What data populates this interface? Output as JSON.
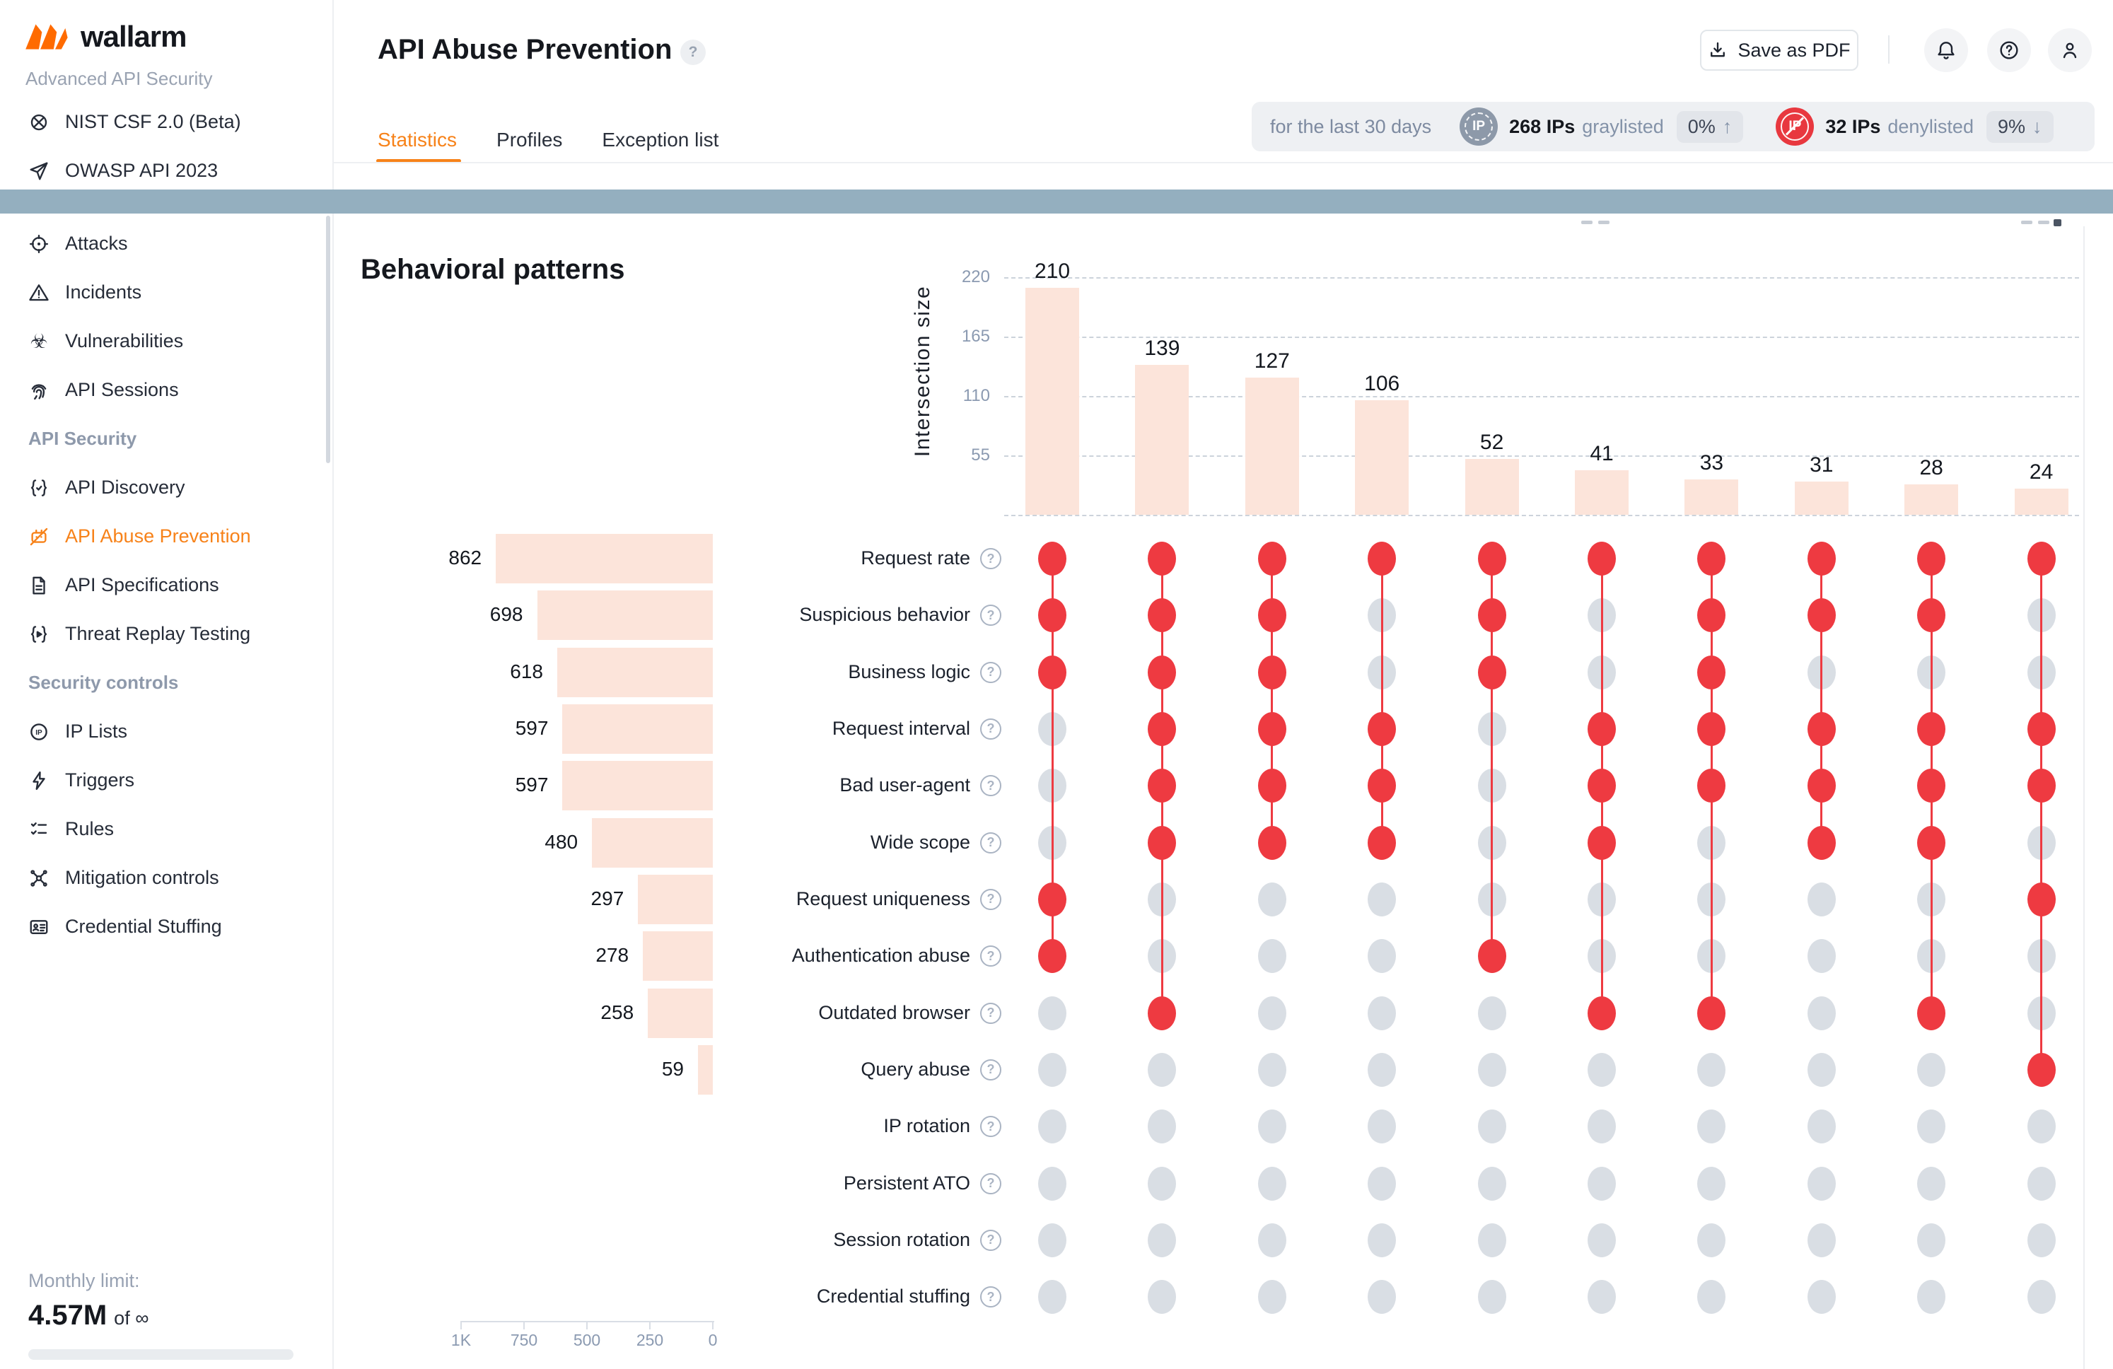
{
  "colors": {
    "accent_orange": "#f78219",
    "red": "#ee3a41",
    "pink_bar": "#fce4da",
    "dot_gray": "#d9dee4",
    "band_blue": "#94afbf"
  },
  "sidebar": {
    "logo": "wallarm",
    "logo_icon": "wallarm-logo-icon",
    "tagline": "Advanced API Security",
    "top_items": [
      {
        "label": "NIST CSF 2.0 (Beta)",
        "icon": "nist-icon"
      },
      {
        "label": "OWASP API 2023",
        "icon": "paper-plane-icon"
      }
    ],
    "items": [
      {
        "type": "item",
        "label": "Attacks",
        "icon": "target-icon"
      },
      {
        "type": "item",
        "label": "Incidents",
        "icon": "warning-icon"
      },
      {
        "type": "item",
        "label": "Vulnerabilities",
        "icon": "biohazard-icon"
      },
      {
        "type": "item",
        "label": "API Sessions",
        "icon": "fingerprint-icon"
      },
      {
        "type": "section",
        "label": "API Security"
      },
      {
        "type": "item",
        "label": "API Discovery",
        "icon": "braces-check-icon"
      },
      {
        "type": "item",
        "label": "API Abuse Prevention",
        "icon": "robot-crossed-icon",
        "active": true
      },
      {
        "type": "item",
        "label": "API Specifications",
        "icon": "document-icon"
      },
      {
        "type": "item",
        "label": "Threat Replay Testing",
        "icon": "braces-play-icon"
      },
      {
        "type": "section",
        "label": "Security controls",
        "chevron": "chevron-down-icon"
      },
      {
        "type": "item",
        "label": "IP Lists",
        "icon": "ip-circle-icon"
      },
      {
        "type": "item",
        "label": "Triggers",
        "icon": "lightning-icon"
      },
      {
        "type": "item",
        "label": "Rules",
        "icon": "checklist-icon"
      },
      {
        "type": "item",
        "label": "Mitigation controls",
        "icon": "hub-icon"
      },
      {
        "type": "item",
        "label": "Credential Stuffing",
        "icon": "id-card-icon"
      }
    ],
    "monthly_limit_label": "Monthly limit:",
    "monthly_limit_value": "4.57M",
    "monthly_limit_suffix": "of ∞"
  },
  "header": {
    "title": "API Abuse Prevention",
    "title_help_icon": "help-icon",
    "tabs": [
      {
        "label": "Statistics",
        "active": true
      },
      {
        "label": "Profiles",
        "active": false
      },
      {
        "label": "Exception list",
        "active": false
      }
    ],
    "save_pdf_label": "Save as PDF",
    "save_pdf_icon": "download-icon",
    "action_icons": [
      "bell-icon",
      "help-icon",
      "user-icon"
    ],
    "period_label": "for the last 30 days",
    "graylisted": {
      "icon": "graylisted-ip-icon",
      "medal_text": "IP",
      "count": "268 IPs",
      "label": "graylisted",
      "badge": "0%",
      "arrow": "↑"
    },
    "denylisted": {
      "icon": "denylisted-ip-icon",
      "medal_text": "IP",
      "count": "32 IPs",
      "label": "denylisted",
      "badge": "9%",
      "arrow": "↓"
    }
  },
  "section_title": "Behavioral patterns",
  "chart_data": {
    "type": "upset",
    "title": "Behavioral patterns",
    "intersection_axis": {
      "label": "Intersection size",
      "ticks": [
        220,
        165,
        110,
        55
      ],
      "max": 220
    },
    "set_axis": {
      "ticks": [
        "1K",
        "750",
        "500",
        "250",
        "0"
      ],
      "max": 1000
    },
    "row_help_icon": "help-icon",
    "categories": [
      {
        "label": "Request rate",
        "size": 862
      },
      {
        "label": "Suspicious behavior",
        "size": 698
      },
      {
        "label": "Business logic",
        "size": 618
      },
      {
        "label": "Request interval",
        "size": 597
      },
      {
        "label": "Bad user-agent",
        "size": 597
      },
      {
        "label": "Wide scope",
        "size": 480
      },
      {
        "label": "Request uniqueness",
        "size": 297
      },
      {
        "label": "Authentication abuse",
        "size": 278
      },
      {
        "label": "Outdated browser",
        "size": 258
      },
      {
        "label": "Query abuse",
        "size": 59
      },
      {
        "label": "IP rotation",
        "size": 0
      },
      {
        "label": "Persistent ATO",
        "size": 0
      },
      {
        "label": "Session rotation",
        "size": 0
      },
      {
        "label": "Credential stuffing",
        "size": 0
      }
    ],
    "intersections": [
      {
        "size": 210,
        "rows": [
          0,
          1,
          2,
          6,
          7
        ]
      },
      {
        "size": 139,
        "rows": [
          0,
          1,
          2,
          3,
          4,
          5,
          8
        ]
      },
      {
        "size": 127,
        "rows": [
          0,
          1,
          2,
          3,
          4,
          5
        ]
      },
      {
        "size": 106,
        "rows": [
          0,
          3,
          4,
          5
        ]
      },
      {
        "size": 52,
        "rows": [
          0,
          1,
          2,
          7
        ]
      },
      {
        "size": 41,
        "rows": [
          0,
          3,
          4,
          5,
          8
        ]
      },
      {
        "size": 33,
        "rows": [
          0,
          1,
          2,
          3,
          4,
          8
        ]
      },
      {
        "size": 31,
        "rows": [
          0,
          1,
          3,
          4,
          5
        ]
      },
      {
        "size": 28,
        "rows": [
          0,
          1,
          3,
          4,
          5,
          8
        ]
      },
      {
        "size": 24,
        "rows": [
          0,
          3,
          4,
          6,
          9
        ]
      }
    ]
  }
}
